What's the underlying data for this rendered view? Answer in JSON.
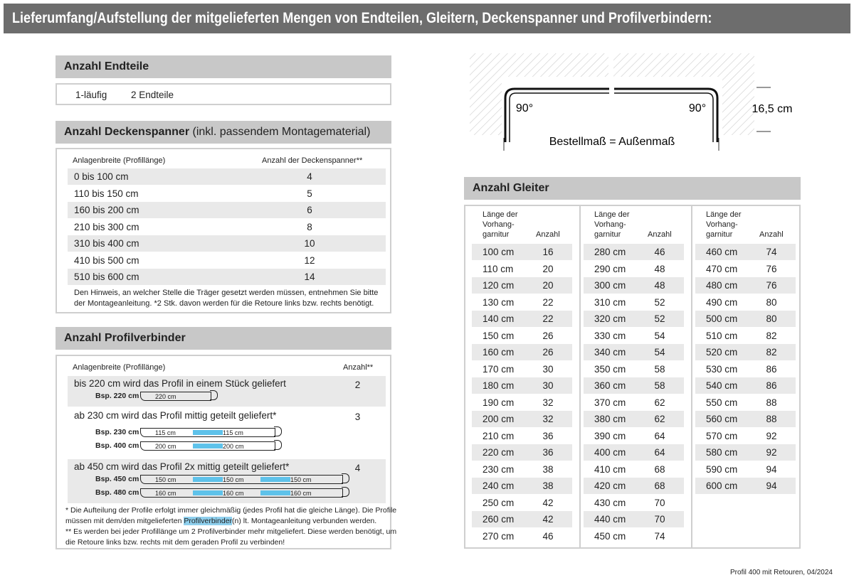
{
  "header": {
    "title": "Lieferumfang/Aufstellung der mitgelieferten Mengen von Endteilen, Gleitern, Deckenspanner und Profilverbindern:"
  },
  "endteile": {
    "title": "Anzahl Endteile",
    "row": [
      "1-läufig",
      "2 Endteile"
    ]
  },
  "deckenspanner": {
    "title": "Anzahl Deckenspanner",
    "title_suffix": "(inkl. passendem Montagematerial)",
    "headers": [
      "Anlagenbreite (Profillänge)",
      "Anzahl der Deckenspanner**"
    ],
    "rows": [
      [
        "0 bis 100 cm",
        4
      ],
      [
        "110 bis 150 cm",
        5
      ],
      [
        "160 bis 200 cm",
        6
      ],
      [
        "210 bis 300 cm",
        8
      ],
      [
        "310 bis 400 cm",
        10
      ],
      [
        "410 bis 500 cm",
        12
      ],
      [
        "510 bis 600 cm",
        14
      ]
    ],
    "notes": [
      "Den Hinweis, an welcher Stelle die Träger gesetzt werden müssen, entnehmen Sie bitte",
      "der Montageanleitung. *2 Stk. davon werden für die Retoure links bzw. rechts benötigt."
    ]
  },
  "profilverbinder": {
    "title": "Anzahl Profilverbinder",
    "headers": [
      "Anlagenbreite (Profillänge)",
      "Anzahl**"
    ],
    "groups": [
      {
        "text": "bis 220 cm wird das Profil in einem Stück geliefert",
        "count": 2,
        "examples": [
          {
            "label": "Bsp. 220 cm",
            "segments": [
              "220 cm"
            ]
          }
        ]
      },
      {
        "text": "ab 230 cm wird das Profil mittig geteilt geliefert*",
        "count": 3,
        "examples": [
          {
            "label": "Bsp. 230 cm",
            "segments": [
              "115 cm",
              "115 cm"
            ]
          },
          {
            "label": "Bsp. 400 cm",
            "segments": [
              "200 cm",
              "200 cm"
            ]
          }
        ]
      },
      {
        "text": "ab 450 cm wird das Profil 2x mittig geteilt geliefert*",
        "count": 4,
        "examples": [
          {
            "label": "Bsp. 450 cm",
            "segments": [
              "150 cm",
              "150 cm",
              "150 cm"
            ]
          },
          {
            "label": "Bsp. 480 cm",
            "segments": [
              "160 cm",
              "160 cm",
              "160 cm"
            ]
          }
        ]
      }
    ],
    "notes": [
      {
        "parts": [
          "* Die Aufteilung der Profile erfolgt immer gleichmäßig (jedes Profil hat die gleiche Länge). Die Profile"
        ]
      },
      {
        "parts": [
          "müssen mit dem/den mitgelieferten ",
          "Profilverbinder",
          "(n) lt. Montageanleitung verbunden werden."
        ]
      },
      {
        "parts": [
          "** Es werden bei jeder Profillänge um 2 Profilverbinder mehr mitgeliefert. Diese werden benötigt, um"
        ]
      },
      {
        "parts": [
          "die Retoure links bzw. rechts mit dem geraden Profil zu verbinden!"
        ]
      }
    ]
  },
  "diagram": {
    "angle_left": "90°",
    "angle_right": "90°",
    "height": "16,5 cm",
    "caption": "Bestellmaß = Außenmaß"
  },
  "gleiter": {
    "title": "Anzahl Gleiter",
    "header_length": [
      "Länge der",
      "Vorhang-",
      "garnitur"
    ],
    "header_count": "Anzahl",
    "columns": [
      [
        [
          "100 cm",
          16
        ],
        [
          "110 cm",
          20
        ],
        [
          "120 cm",
          20
        ],
        [
          "130 cm",
          22
        ],
        [
          "140 cm",
          22
        ],
        [
          "150 cm",
          26
        ],
        [
          "160 cm",
          26
        ],
        [
          "170 cm",
          30
        ],
        [
          "180 cm",
          30
        ],
        [
          "190 cm",
          32
        ],
        [
          "200 cm",
          32
        ],
        [
          "210 cm",
          36
        ],
        [
          "220 cm",
          36
        ],
        [
          "230 cm",
          38
        ],
        [
          "240 cm",
          38
        ],
        [
          "250 cm",
          42
        ],
        [
          "260 cm",
          42
        ],
        [
          "270 cm",
          46
        ]
      ],
      [
        [
          "280 cm",
          46
        ],
        [
          "290 cm",
          48
        ],
        [
          "300 cm",
          48
        ],
        [
          "310 cm",
          52
        ],
        [
          "320 cm",
          52
        ],
        [
          "330 cm",
          54
        ],
        [
          "340 cm",
          54
        ],
        [
          "350 cm",
          58
        ],
        [
          "360 cm",
          58
        ],
        [
          "370 cm",
          62
        ],
        [
          "380 cm",
          62
        ],
        [
          "390 cm",
          64
        ],
        [
          "400 cm",
          64
        ],
        [
          "410 cm",
          68
        ],
        [
          "420 cm",
          68
        ],
        [
          "430 cm",
          70
        ],
        [
          "440 cm",
          70
        ],
        [
          "450 cm",
          74
        ]
      ],
      [
        [
          "460 cm",
          74
        ],
        [
          "470 cm",
          76
        ],
        [
          "480 cm",
          76
        ],
        [
          "490 cm",
          80
        ],
        [
          "500 cm",
          80
        ],
        [
          "510 cm",
          82
        ],
        [
          "520 cm",
          82
        ],
        [
          "530 cm",
          86
        ],
        [
          "540 cm",
          86
        ],
        [
          "550 cm",
          88
        ],
        [
          "560 cm",
          88
        ],
        [
          "570 cm",
          92
        ],
        [
          "580 cm",
          92
        ],
        [
          "590 cm",
          94
        ],
        [
          "600 cm",
          94
        ]
      ]
    ]
  },
  "footer": {
    "text": "Profil 400 mit Retouren, 04/2024"
  }
}
